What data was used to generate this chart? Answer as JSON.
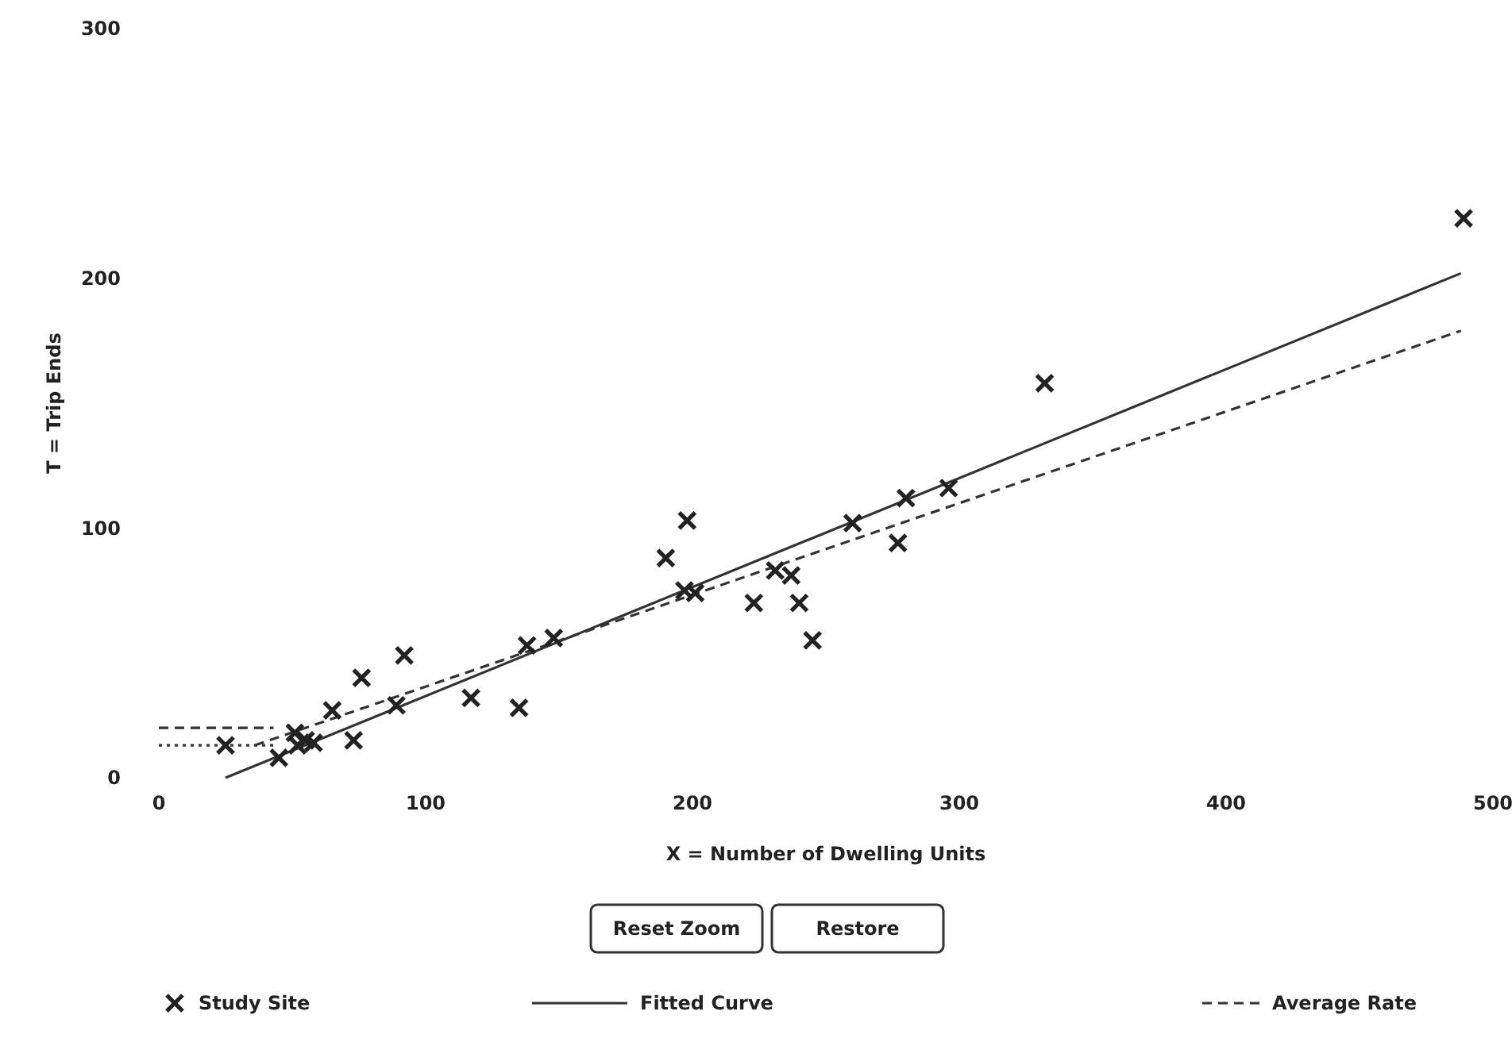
{
  "chart_data": {
    "type": "scatter",
    "xlabel": "X = Number of Dwelling Units",
    "ylabel": "T = Trip Ends",
    "xlim": [
      0,
      500
    ],
    "ylim": [
      0,
      300
    ],
    "xticks": [
      0,
      100,
      200,
      300,
      400,
      500
    ],
    "yticks": [
      0,
      100,
      200,
      300
    ],
    "grid": false,
    "legend": "bottom",
    "annotations": [
      "Reset Zoom",
      "Restore"
    ],
    "series": [
      {
        "name": "Study Site",
        "type": "scatter",
        "color": "#222222",
        "marker": "cross",
        "x": [
          25,
          45,
          51,
          52,
          55,
          58,
          73,
          65,
          76,
          89,
          92,
          117,
          135,
          138,
          148,
          190,
          198,
          197,
          201,
          223,
          231,
          237,
          240,
          245,
          260,
          277,
          280,
          296,
          332,
          489
        ],
        "values": [
          13,
          8,
          18,
          13,
          15,
          14,
          15,
          27,
          40,
          29,
          49,
          32,
          28,
          53,
          56,
          88,
          103,
          75,
          74,
          70,
          83,
          81,
          70,
          55,
          102,
          94,
          112,
          116,
          158,
          224
        ]
      },
      {
        "name": "Fitted Curve",
        "type": "line",
        "color": "#333333",
        "marker": "none",
        "line_style": "solid",
        "x": [
          25,
          488
        ],
        "values": [
          0,
          202
        ]
      },
      {
        "name": "Average Rate",
        "type": "line",
        "color": "#333333",
        "marker": "none",
        "line_style": "dashed",
        "x": [
          36,
          488
        ],
        "values": [
          13,
          179
        ]
      },
      {
        "type": "line",
        "color": "#333333",
        "marker": "none",
        "line_style": "dashed",
        "x": [
          0,
          43
        ],
        "values": [
          20,
          20
        ]
      },
      {
        "type": "line",
        "color": "#333333",
        "marker": "none",
        "line_style": "dotted",
        "x": [
          0,
          43
        ],
        "values": [
          13,
          13
        ]
      }
    ]
  }
}
